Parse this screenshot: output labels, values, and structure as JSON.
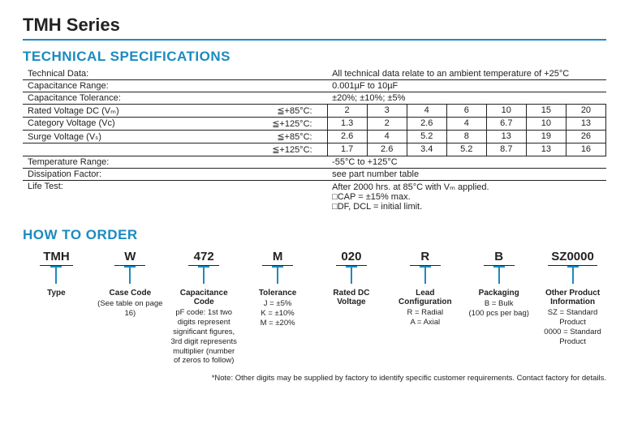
{
  "page_title": "TMH Series",
  "section_specs_title": "TECHNICAL SPECIFICATIONS",
  "specs": {
    "technical_data": {
      "label": "Technical Data:",
      "value": "All technical data relate to an ambient temperature of +25°C"
    },
    "cap_range": {
      "label": "Capacitance Range:",
      "value": "0.001µF to 10µF"
    },
    "cap_tol": {
      "label": "Capacitance Tolerance:",
      "value": "±20%; ±10%; ±5%"
    },
    "rated_v": {
      "label": "Rated Voltage DC (Vₘ)",
      "cond": "≦+85°C:",
      "cells": [
        "2",
        "3",
        "4",
        "6",
        "10",
        "15",
        "20"
      ]
    },
    "cat_v": {
      "label": "Category Voltage (Vᴄ)",
      "cond": "≦+125°C:",
      "cells": [
        "1.3",
        "2",
        "2.6",
        "4",
        "6.7",
        "10",
        "13"
      ]
    },
    "surge_v1": {
      "label": "Surge Voltage (Vₛ)",
      "cond": "≦+85°C:",
      "cells": [
        "2.6",
        "4",
        "5.2",
        "8",
        "13",
        "19",
        "26"
      ]
    },
    "surge_v2": {
      "label": "",
      "cond": "≦+125°C:",
      "cells": [
        "1.7",
        "2.6",
        "3.4",
        "5.2",
        "8.7",
        "13",
        "16"
      ]
    },
    "temp_range": {
      "label": "Temperature Range:",
      "value": "-55°C to +125°C"
    },
    "diss": {
      "label": "Dissipation Factor:",
      "value": "see part number table"
    },
    "life": {
      "label": "Life Test:",
      "value1": "After 2000 hrs. at 85°C with Vₘ applied.",
      "value2": "□CAP = ±15% max.",
      "value3": "□DF, DCL = initial limit."
    }
  },
  "section_order_title": "HOW TO ORDER",
  "order": [
    {
      "code": "TMH",
      "label": "Type",
      "desc": ""
    },
    {
      "code": "W",
      "label": "Case Code",
      "desc": "(See table on page 16)"
    },
    {
      "code": "472",
      "label": "Capacitance Code",
      "desc": "pF code: 1st two digits represent significant figures, 3rd digit represents multiplier (number of zeros to follow)"
    },
    {
      "code": "M",
      "label": "Tolerance",
      "desc": "J = ±5%\nK = ±10%\nM = ±20%"
    },
    {
      "code": "020",
      "label": "Rated DC Voltage",
      "desc": ""
    },
    {
      "code": "R",
      "label": "Lead Configuration",
      "desc": "R = Radial\nA = Axial"
    },
    {
      "code": "B",
      "label": "Packaging",
      "desc": "B = Bulk\n(100 pcs per bag)"
    },
    {
      "code": "SZ0000",
      "label": "Other Product Information",
      "desc": "SZ = Standard Product\n0000 = Standard Product"
    }
  ],
  "footnote": "*Note: Other digits may be supplied by factory to identify specific customer requirements. Contact factory for details."
}
